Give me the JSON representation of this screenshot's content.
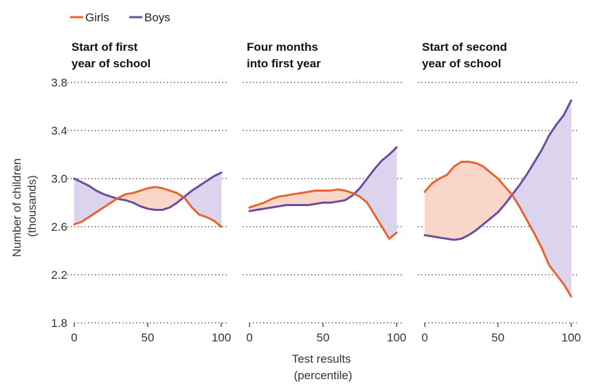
{
  "chart_data": {
    "type": "line",
    "legend": [
      {
        "name": "Girls",
        "color": "#E8632B"
      },
      {
        "name": "Boys",
        "color": "#6A4BA3"
      }
    ],
    "fills": {
      "girls_above": "#F9D6C8",
      "boys_above": "#DCD4EC"
    },
    "ylabel_lines": [
      "Number of children",
      "(thousands)"
    ],
    "xlabel_lines": [
      "Test results",
      "(percentile)"
    ],
    "ylim": [
      1.8,
      3.8
    ],
    "yticks": [
      1.8,
      2.2,
      2.6,
      3.0,
      3.4,
      3.8
    ],
    "ytick_labels": [
      "1.8",
      "2.2",
      "2.6",
      "3.0",
      "3.4",
      "3.8"
    ],
    "xlim": [
      0,
      100
    ],
    "xticks": [
      0,
      50,
      100
    ],
    "xtick_labels": [
      "0",
      "50",
      "100"
    ],
    "panels": [
      {
        "title_lines": [
          "Start of first",
          "year of school"
        ],
        "x": [
          0,
          5,
          10,
          15,
          20,
          25,
          30,
          35,
          40,
          45,
          50,
          55,
          60,
          65,
          70,
          75,
          80,
          85,
          90,
          95,
          100
        ],
        "series": [
          {
            "name": "Girls",
            "values": [
              2.62,
              2.64,
              2.68,
              2.72,
              2.76,
              2.8,
              2.84,
              2.87,
              2.88,
              2.9,
              2.92,
              2.93,
              2.92,
              2.9,
              2.88,
              2.84,
              2.76,
              2.7,
              2.68,
              2.65,
              2.6
            ]
          },
          {
            "name": "Boys",
            "values": [
              3.0,
              2.97,
              2.94,
              2.9,
              2.87,
              2.85,
              2.83,
              2.82,
              2.8,
              2.77,
              2.75,
              2.74,
              2.74,
              2.76,
              2.8,
              2.85,
              2.9,
              2.94,
              2.98,
              3.02,
              3.05
            ]
          }
        ]
      },
      {
        "title_lines": [
          "Four months",
          "into first year"
        ],
        "x": [
          0,
          5,
          10,
          15,
          20,
          25,
          30,
          35,
          40,
          45,
          50,
          55,
          60,
          65,
          70,
          75,
          80,
          85,
          90,
          95,
          100
        ],
        "series": [
          {
            "name": "Girls",
            "values": [
              2.76,
              2.78,
              2.8,
              2.83,
              2.85,
              2.86,
              2.87,
              2.88,
              2.89,
              2.9,
              2.9,
              2.9,
              2.91,
              2.9,
              2.88,
              2.85,
              2.8,
              2.7,
              2.6,
              2.5,
              2.55
            ]
          },
          {
            "name": "Boys",
            "values": [
              2.73,
              2.74,
              2.75,
              2.76,
              2.77,
              2.78,
              2.78,
              2.78,
              2.78,
              2.79,
              2.8,
              2.8,
              2.81,
              2.82,
              2.86,
              2.92,
              3.0,
              3.08,
              3.15,
              3.2,
              3.26
            ]
          }
        ]
      },
      {
        "title_lines": [
          "Start of second",
          "year of school"
        ],
        "x": [
          0,
          5,
          10,
          15,
          20,
          25,
          30,
          35,
          40,
          45,
          50,
          55,
          60,
          65,
          70,
          75,
          80,
          85,
          90,
          95,
          100
        ],
        "series": [
          {
            "name": "Girls",
            "values": [
              2.89,
              2.96,
              3.0,
              3.03,
              3.1,
              3.14,
              3.14,
              3.13,
              3.1,
              3.05,
              3.0,
              2.93,
              2.86,
              2.76,
              2.65,
              2.54,
              2.42,
              2.28,
              2.2,
              2.12,
              2.02
            ]
          },
          {
            "name": "Boys",
            "values": [
              2.53,
              2.52,
              2.51,
              2.5,
              2.49,
              2.5,
              2.53,
              2.57,
              2.62,
              2.67,
              2.72,
              2.79,
              2.87,
              2.95,
              3.04,
              3.14,
              3.24,
              3.36,
              3.45,
              3.53,
              3.65
            ]
          }
        ]
      }
    ]
  }
}
